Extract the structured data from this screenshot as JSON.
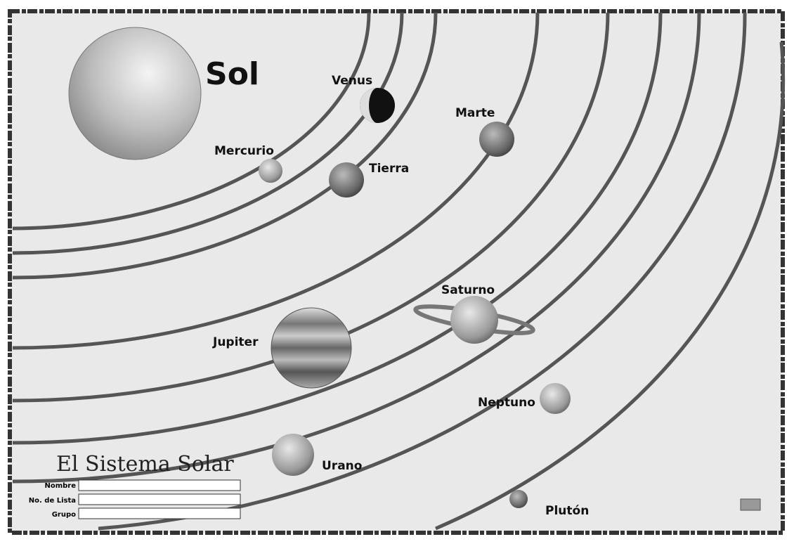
{
  "sun": "Sol",
  "planets": [
    "Mercurio",
    "Venus",
    "Tierra",
    "Marte",
    "Jupiter",
    "Saturno",
    "Urano",
    "Neptuno",
    "Plutón"
  ],
  "title": "El Sistema Solar",
  "form": [
    "Nombre",
    "No. de Lista",
    "Grupo"
  ]
}
